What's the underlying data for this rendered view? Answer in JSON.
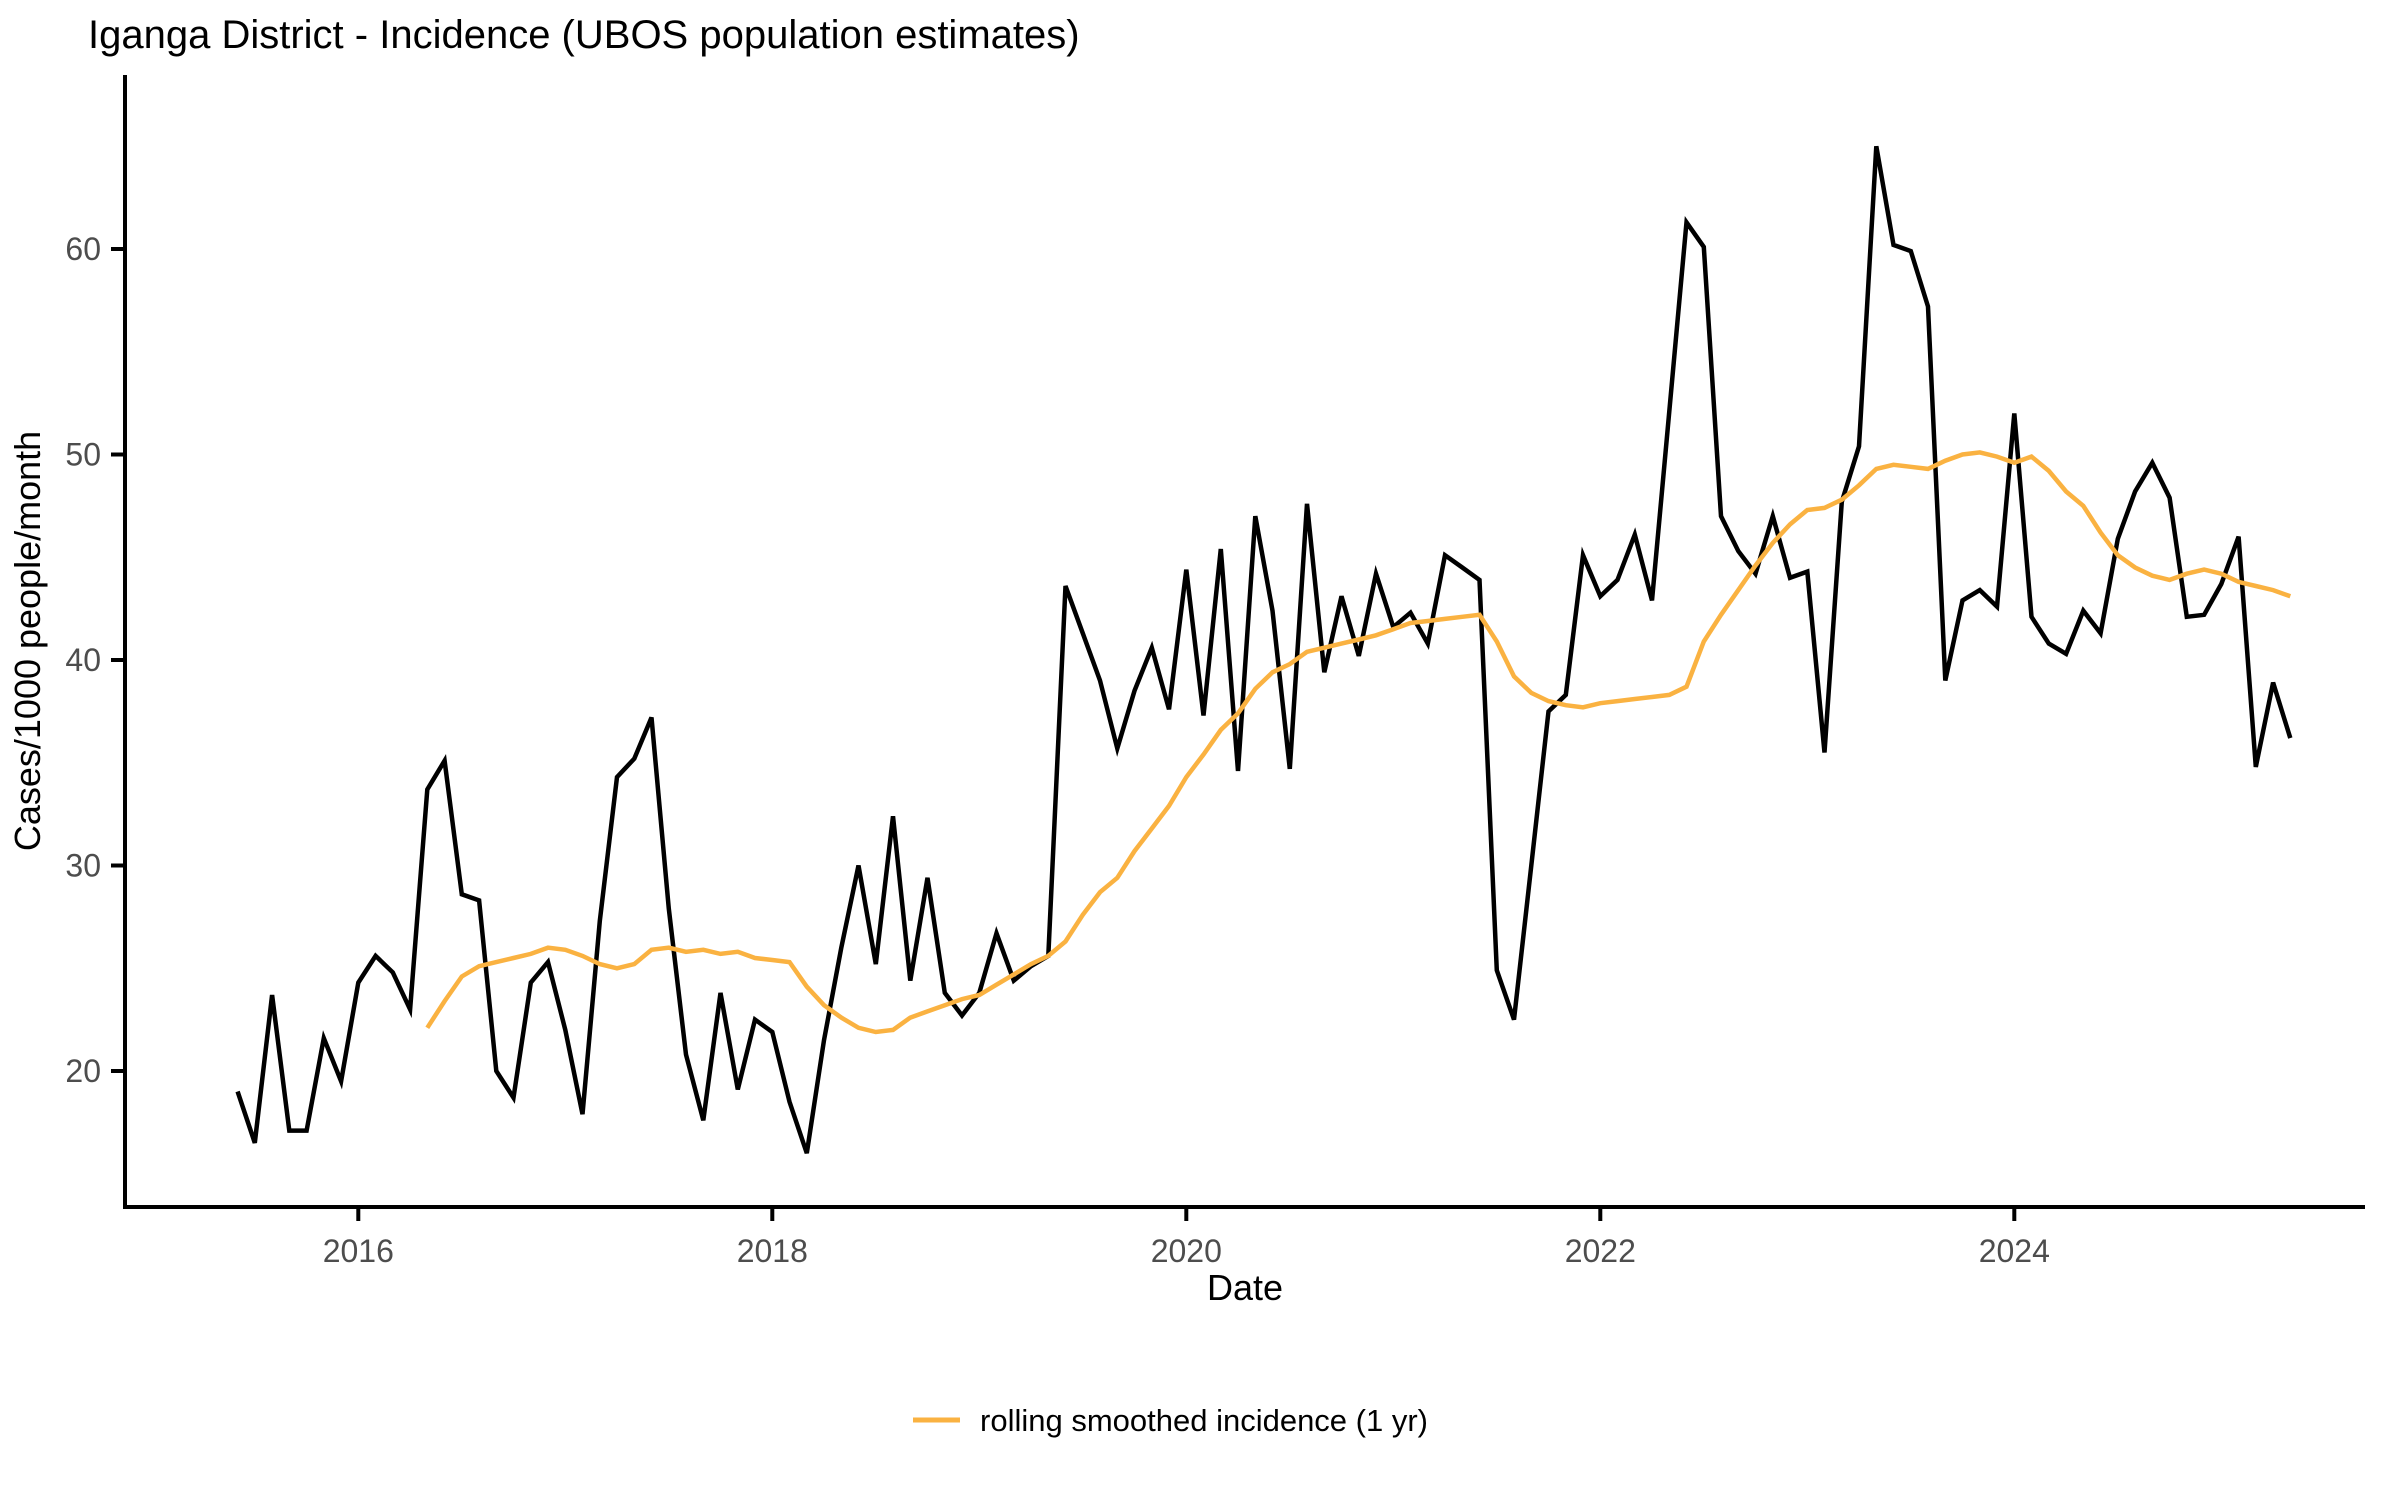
{
  "title": "Iganga District - Incidence (UBOS population estimates)",
  "axes": {
    "x": {
      "label": "Date",
      "ticks": [
        2016,
        2018,
        2020,
        2022,
        2024
      ]
    },
    "y": {
      "label": "Cases/1000 people/month",
      "ticks": [
        20,
        30,
        40,
        50,
        60
      ]
    }
  },
  "legend": {
    "label": "rolling smoothed incidence (1 yr)",
    "color": "#FAB241"
  },
  "colors": {
    "incidence_line": "#000000",
    "smoothed_line": "#FAB241",
    "axis": "#000000",
    "tick_text": "#4D4D4D",
    "background": "#FFFFFF"
  },
  "chart_data": {
    "type": "line",
    "title": "Iganga District - Incidence (UBOS population estimates)",
    "xlabel": "Date",
    "ylabel": "Cases/1000 people/month",
    "x_range": [
      "2014-11",
      "2025-08"
    ],
    "ylim": [
      13,
      68
    ],
    "grid": false,
    "legend_position": "bottom-center",
    "series": [
      {
        "name": "monthly incidence",
        "color": "#000000",
        "start": "2015-06",
        "frequency": "monthly",
        "values": [
          19.0,
          16.5,
          23.7,
          17.1,
          17.1,
          21.6,
          19.5,
          24.3,
          25.6,
          24.8,
          23.0,
          33.7,
          35.1,
          28.6,
          28.3,
          20.0,
          18.7,
          24.3,
          25.3,
          22.0,
          17.9,
          27.3,
          34.3,
          35.2,
          37.2,
          27.9,
          20.8,
          17.6,
          23.8,
          19.1,
          22.5,
          21.9,
          18.5,
          16.0,
          21.5,
          26.0,
          30.0,
          25.2,
          32.4,
          24.4,
          29.4,
          23.8,
          22.7,
          23.8,
          26.7,
          24.4,
          25.1,
          25.6,
          43.6,
          41.3,
          39.0,
          35.7,
          38.5,
          40.6,
          37.6,
          44.4,
          37.3,
          45.4,
          34.6,
          47.0,
          42.4,
          34.7,
          47.6,
          39.4,
          43.1,
          40.2,
          44.2,
          41.6,
          42.3,
          40.8,
          45.1,
          44.5,
          43.9,
          24.9,
          22.5,
          30.0,
          37.5,
          38.3,
          45.1,
          43.1,
          43.9,
          46.1,
          42.9,
          52.1,
          61.3,
          60.1,
          47.0,
          45.3,
          44.2,
          47.0,
          44.0,
          44.3,
          35.5,
          47.7,
          50.4,
          65.0,
          60.2,
          59.9,
          57.2,
          39.0,
          42.9,
          43.4,
          42.6,
          52.0,
          42.1,
          40.8,
          40.3,
          42.4,
          41.3,
          45.9,
          48.2,
          49.6,
          47.9,
          42.1,
          42.2,
          43.7,
          46.0,
          34.8,
          38.9,
          36.2
        ]
      },
      {
        "name": "rolling smoothed incidence (1 yr)",
        "color": "#FAB241",
        "start": "2016-05",
        "frequency": "monthly",
        "values": [
          22.1,
          23.4,
          24.6,
          25.1,
          25.3,
          25.5,
          25.7,
          26.0,
          25.9,
          25.6,
          25.2,
          25.0,
          25.2,
          25.9,
          26.0,
          25.8,
          25.9,
          25.7,
          25.8,
          25.5,
          25.4,
          25.3,
          24.1,
          23.2,
          22.6,
          22.1,
          21.9,
          22.0,
          22.6,
          22.9,
          23.2,
          23.5,
          23.7,
          24.2,
          24.7,
          25.2,
          25.6,
          26.3,
          27.6,
          28.7,
          29.4,
          30.7,
          31.8,
          32.9,
          34.3,
          35.4,
          36.6,
          37.4,
          38.6,
          39.4,
          39.8,
          40.4,
          40.6,
          40.8,
          41.0,
          41.2,
          41.5,
          41.8,
          41.9,
          42.0,
          42.1,
          42.2,
          40.9,
          39.2,
          38.4,
          38.0,
          37.8,
          37.7,
          37.9,
          38.0,
          38.1,
          38.2,
          38.3,
          38.7,
          40.9,
          42.2,
          43.4,
          44.6,
          45.7,
          46.6,
          47.3,
          47.4,
          47.8,
          48.5,
          49.3,
          49.5,
          49.4,
          49.3,
          49.7,
          50.0,
          50.1,
          49.9,
          49.6,
          49.9,
          49.2,
          48.2,
          47.5,
          46.2,
          45.1,
          44.5,
          44.1,
          43.9,
          44.2,
          44.4,
          44.2,
          43.8,
          43.6,
          43.4,
          43.1
        ]
      }
    ]
  }
}
